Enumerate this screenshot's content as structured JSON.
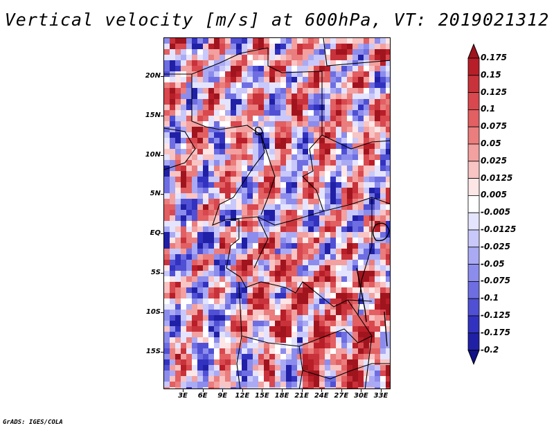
{
  "title": "Vertical velocity [m/s] at 600hPa, VT: 2019021312",
  "map": {
    "lat_labels": [
      "20N",
      "15N",
      "10N",
      "5N",
      "EQ",
      "5S",
      "10S",
      "15S"
    ],
    "lon_labels": [
      "3E",
      "6E",
      "9E",
      "12E",
      "15E",
      "18E",
      "21E",
      "24E",
      "27E",
      "30E",
      "33E"
    ],
    "lat_range": [
      -20,
      25
    ],
    "lon_range": [
      0,
      35
    ]
  },
  "colorbar": {
    "labels": [
      "0.175",
      "0.15",
      "0.125",
      "0.1",
      "0.075",
      "0.05",
      "0.025",
      "0.0125",
      "0.005",
      "-0.005",
      "-0.0125",
      "-0.025",
      "-0.05",
      "-0.075",
      "-0.1",
      "-0.125",
      "-0.175",
      "-0.2"
    ],
    "colors": [
      "#a0141e",
      "#b81e28",
      "#c8323a",
      "#d8484e",
      "#e25f62",
      "#ea7d7d",
      "#f2a0a0",
      "#f8c4c4",
      "#fde6e6",
      "#ffffff",
      "#e4e4ff",
      "#c8c8fa",
      "#aaaaf4",
      "#8c8cec",
      "#6e6ee2",
      "#5050d4",
      "#3232c0",
      "#2020a6",
      "#10108a"
    ]
  },
  "credit": "GrADS: IGES/COLA"
}
